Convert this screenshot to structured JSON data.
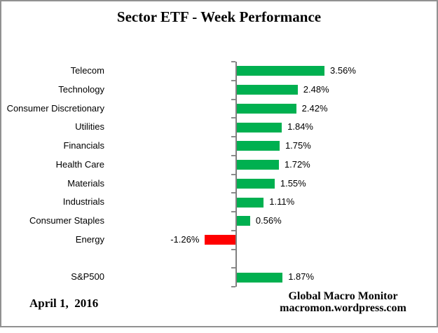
{
  "title": "Sector ETF - Week Performance",
  "footer": {
    "date": "April 1,  2016",
    "brand_line1": "Global Macro Monitor",
    "brand_line2": "macromon.wordpress.com"
  },
  "colors": {
    "positive_bar": "#00B050",
    "negative_bar": "#FF0000",
    "axis": "#808080",
    "tick": "#8c8c8c",
    "frame_border": "#919191",
    "text": "#000000"
  },
  "chart_data": {
    "type": "bar",
    "orientation": "horizontal",
    "title": "Sector ETF - Week Performance",
    "categories": [
      "Telecom",
      "Technology",
      "Consumer Discretionary",
      "Utilities",
      "Financials",
      "Health Care",
      "Materials",
      "Industrials",
      "Consumer Staples",
      "Energy",
      "",
      "S&P500"
    ],
    "values": [
      3.56,
      2.48,
      2.42,
      1.84,
      1.75,
      1.72,
      1.55,
      1.11,
      0.56,
      -1.26,
      null,
      1.87
    ],
    "value_labels": [
      "3.56%",
      "2.48%",
      "2.42%",
      "1.84%",
      "1.75%",
      "1.72%",
      "1.55%",
      "1.11%",
      "0.56%",
      "-1.26%",
      "",
      "1.87%"
    ],
    "unit": "%",
    "gridlines": false,
    "value_axis_visible": false,
    "legend": "none"
  }
}
